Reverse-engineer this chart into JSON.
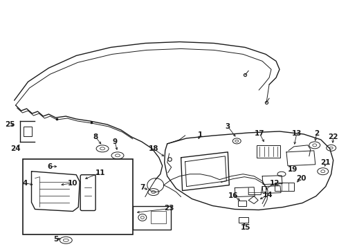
{
  "bg_color": "#ffffff",
  "line_color": "#1a1a1a",
  "fig_w": 4.9,
  "fig_h": 3.6,
  "dpi": 100,
  "font_size": 7.5,
  "font_size_small": 6.5
}
